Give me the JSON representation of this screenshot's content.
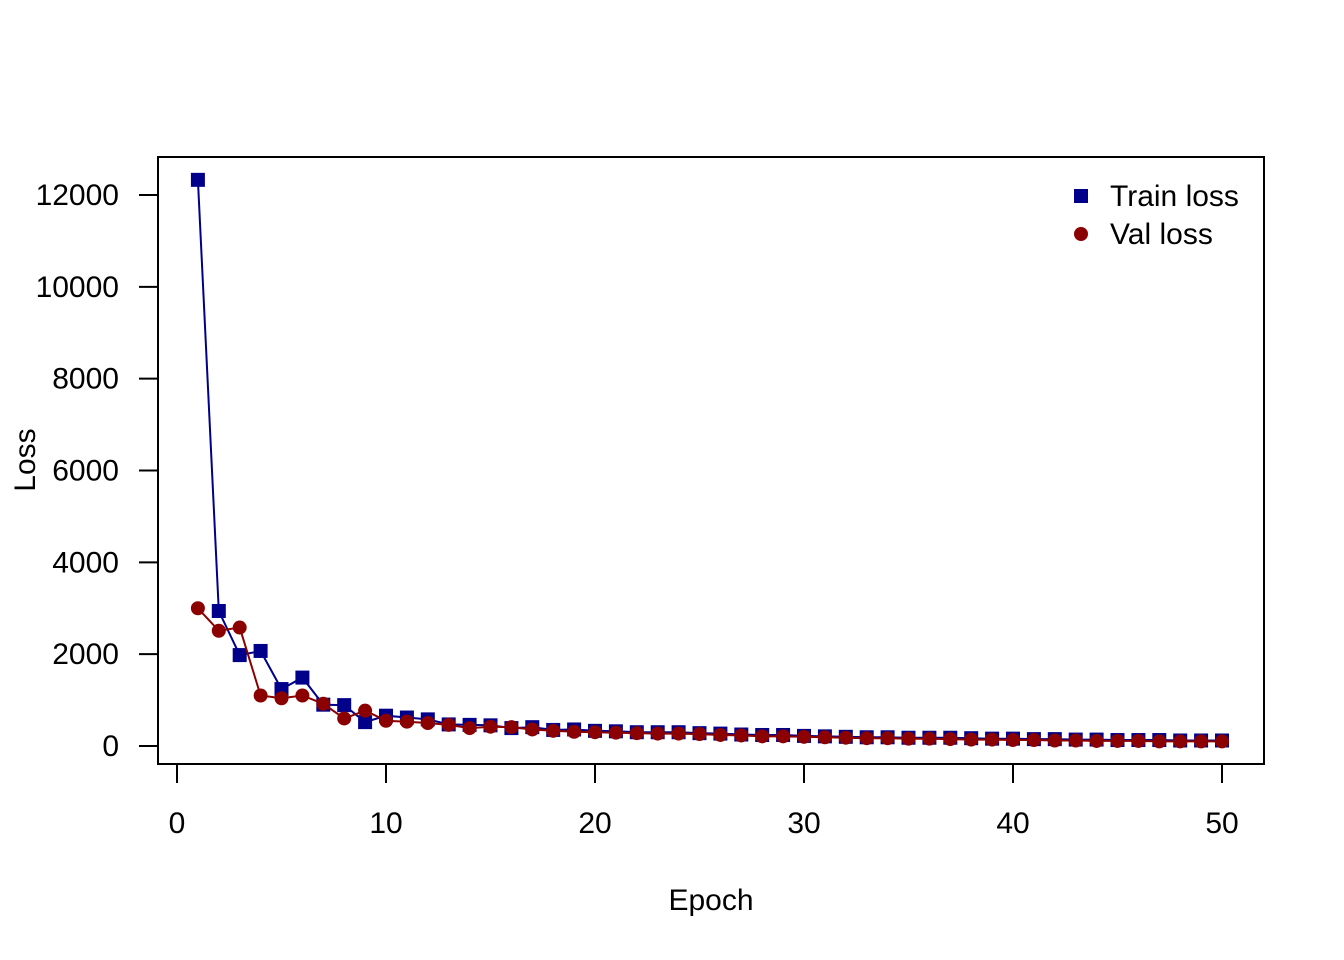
{
  "chart_data": {
    "type": "line",
    "title": "",
    "xlabel": "Epoch",
    "ylabel": "Loss",
    "xlim": [
      0,
      50
    ],
    "ylim": [
      0,
      12000
    ],
    "xticks": [
      0,
      10,
      20,
      30,
      40,
      50
    ],
    "yticks": [
      0,
      2000,
      4000,
      6000,
      8000,
      10000,
      12000
    ],
    "grid": false,
    "legend_position": "top-right",
    "x": [
      1,
      2,
      3,
      4,
      5,
      6,
      7,
      8,
      9,
      10,
      11,
      12,
      13,
      14,
      15,
      16,
      17,
      18,
      19,
      20,
      21,
      22,
      23,
      24,
      25,
      26,
      27,
      28,
      29,
      30,
      31,
      32,
      33,
      34,
      35,
      36,
      37,
      38,
      39,
      40,
      41,
      42,
      43,
      44,
      45,
      46,
      47,
      48,
      49,
      50
    ],
    "series": [
      {
        "name": "Train loss",
        "color": "#00008B",
        "marker": "square",
        "values": [
          12330,
          2940,
          1980,
          2070,
          1240,
          1490,
          900,
          890,
          520,
          660,
          620,
          580,
          470,
          460,
          450,
          390,
          410,
          350,
          360,
          330,
          320,
          300,
          300,
          300,
          280,
          270,
          250,
          240,
          240,
          220,
          210,
          200,
          190,
          190,
          180,
          180,
          180,
          170,
          160,
          160,
          150,
          150,
          140,
          140,
          130,
          130,
          130,
          120,
          120,
          120
        ]
      },
      {
        "name": "Val loss",
        "color": "#8B0000",
        "marker": "circle",
        "values": [
          3000,
          2510,
          2580,
          1100,
          1040,
          1100,
          920,
          600,
          770,
          550,
          530,
          500,
          460,
          390,
          420,
          410,
          360,
          330,
          310,
          300,
          290,
          280,
          270,
          270,
          260,
          240,
          230,
          210,
          210,
          200,
          190,
          180,
          170,
          170,
          160,
          160,
          150,
          140,
          140,
          130,
          130,
          120,
          120,
          110,
          110,
          110,
          100,
          100,
          100,
          100
        ]
      }
    ]
  }
}
